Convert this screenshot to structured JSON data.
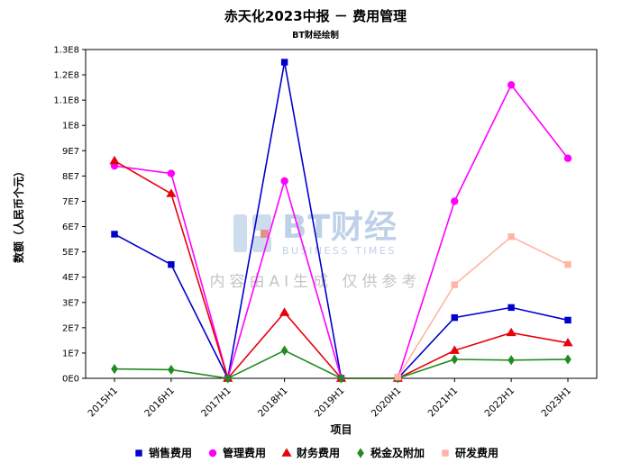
{
  "title": "赤天化2023中报 － 费用管理",
  "subtitle": "BT财经绘制",
  "watermark": {
    "brand": "BT财经",
    "brand_sub": "BUSINESS TIMES",
    "disclaimer": "内容由AI生成 仅供参考"
  },
  "chart_data": {
    "type": "line",
    "title": "赤天化2023中报 － 费用管理",
    "subtitle": "BT财经绘制",
    "xlabel": "项目",
    "ylabel": "数额（人民币个元）",
    "categories": [
      "2015H1",
      "2016H1",
      "2017H1",
      "2018H1",
      "2019H1",
      "2020H1",
      "2021H1",
      "2022H1",
      "2023H1"
    ],
    "ylim": [
      0,
      130000000
    ],
    "ytick_labels": [
      "0E0",
      "1E7",
      "2E7",
      "3E7",
      "4E7",
      "5E7",
      "6E7",
      "7E7",
      "8E7",
      "9E7",
      "1E8",
      "1.1E8",
      "1.2E8",
      "1.3E8"
    ],
    "ytick_values": [
      0,
      10000000,
      20000000,
      30000000,
      40000000,
      50000000,
      60000000,
      70000000,
      80000000,
      90000000,
      100000000,
      110000000,
      120000000,
      130000000
    ],
    "grid": false,
    "legend_position": "bottom",
    "series": [
      {
        "name": "销售费用",
        "color": "#0000cd",
        "marker": "square",
        "values": [
          57000000,
          45000000,
          0,
          125000000,
          0,
          0,
          24000000,
          28000000,
          23000000
        ]
      },
      {
        "name": "管理费用",
        "color": "#ff00ff",
        "marker": "circle",
        "values": [
          84000000,
          81000000,
          0,
          78000000,
          0,
          0,
          70000000,
          116000000,
          87000000
        ]
      },
      {
        "name": "财务费用",
        "color": "#e8000b",
        "marker": "triangle",
        "values": [
          86000000,
          73000000,
          0,
          26000000,
          0,
          0,
          11000000,
          18000000,
          14000000
        ]
      },
      {
        "name": "税金及附加",
        "color": "#228b22",
        "marker": "diamond",
        "values": [
          3700000,
          3400000,
          0,
          11000000,
          0,
          0,
          7500000,
          7200000,
          7500000
        ]
      },
      {
        "name": "研发费用",
        "color": "#ffb4a6",
        "marker": "square",
        "values": [
          null,
          null,
          null,
          null,
          null,
          500000,
          37000000,
          56000000,
          45000000
        ]
      }
    ]
  }
}
